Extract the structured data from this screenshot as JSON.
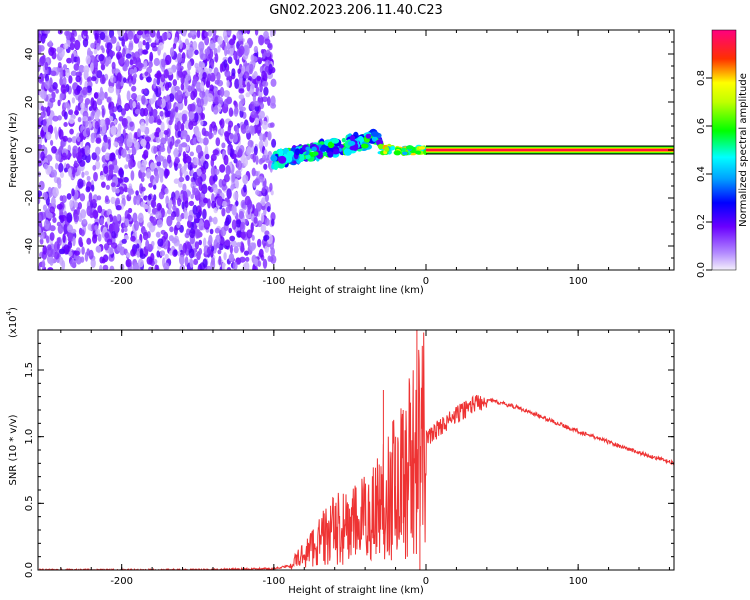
{
  "title": "GN02.2023.206.11.40.C23",
  "chart_data": [
    {
      "type": "heatmap",
      "xlabel": "Height of straight line (km)",
      "ylabel": "Frequency (Hz)",
      "xlim": [
        -255,
        163
      ],
      "ylim": [
        -50,
        50
      ],
      "xticks": [
        -200,
        -100,
        0,
        100
      ],
      "yticks": [
        -40,
        -20,
        0,
        20,
        40
      ],
      "colorbar": {
        "label": "Normalized spectral amplitude",
        "range": [
          0.0,
          1.0
        ],
        "ticks": [
          "0.0",
          "0.2",
          "0.4",
          "0.6",
          "0.8"
        ],
        "colors": [
          "#f4f0fb",
          "#6a00ff",
          "#0000ff",
          "#00ffff",
          "#00ff00",
          "#ffff00",
          "#ff0000",
          "#ff007f"
        ]
      },
      "features": [
        {
          "name": "noise",
          "x_range": [
            -255,
            -100
          ],
          "amplitude": 0.15
        },
        {
          "name": "chirp",
          "x_range": [
            -100,
            -30
          ],
          "freq_start": -4,
          "freq_end": 5,
          "amplitude": 0.45
        },
        {
          "name": "tone",
          "x_range": [
            -30,
            0
          ],
          "freq": 0,
          "amplitude": 0.75
        },
        {
          "name": "steady",
          "x_range": [
            0,
            163
          ],
          "freq": 0,
          "amplitude": 1.0
        }
      ]
    },
    {
      "type": "line",
      "xlabel": "Height of straight line (km)",
      "ylabel": "SNR (10 * v/v)",
      "yscale_label": "(x10",
      "yscale_exp": "4",
      "xlim": [
        -255,
        163
      ],
      "ylim": [
        0.0,
        1.8
      ],
      "xticks": [
        -200,
        -100,
        0,
        100
      ],
      "yticks": [
        "0.0",
        "0.5",
        "1.0",
        "1.5"
      ],
      "color": "#ee3333",
      "series": [
        {
          "x": [
            -255,
            -200,
            -150,
            -100,
            -90,
            -80,
            -70,
            -60,
            -50,
            -40,
            -30,
            -25,
            -20,
            -15,
            -10,
            -5,
            0,
            10,
            20,
            30,
            40,
            60,
            80,
            100,
            120,
            140,
            163
          ],
          "y": [
            0.0,
            0.0,
            0.0,
            0.01,
            0.03,
            0.12,
            0.22,
            0.3,
            0.32,
            0.38,
            0.5,
            0.6,
            0.62,
            0.7,
            0.8,
            0.88,
            0.98,
            1.08,
            1.16,
            1.24,
            1.28,
            1.22,
            1.13,
            1.04,
            0.96,
            0.88,
            0.8
          ]
        }
      ],
      "spikes": [
        {
          "x": -28,
          "y": 1.35
        },
        {
          "x": -20,
          "y": 1.0
        },
        {
          "x": -15,
          "y": 1.2
        },
        {
          "x": -6,
          "y": 1.8
        },
        {
          "x": -4,
          "y": 0.0
        }
      ]
    }
  ]
}
